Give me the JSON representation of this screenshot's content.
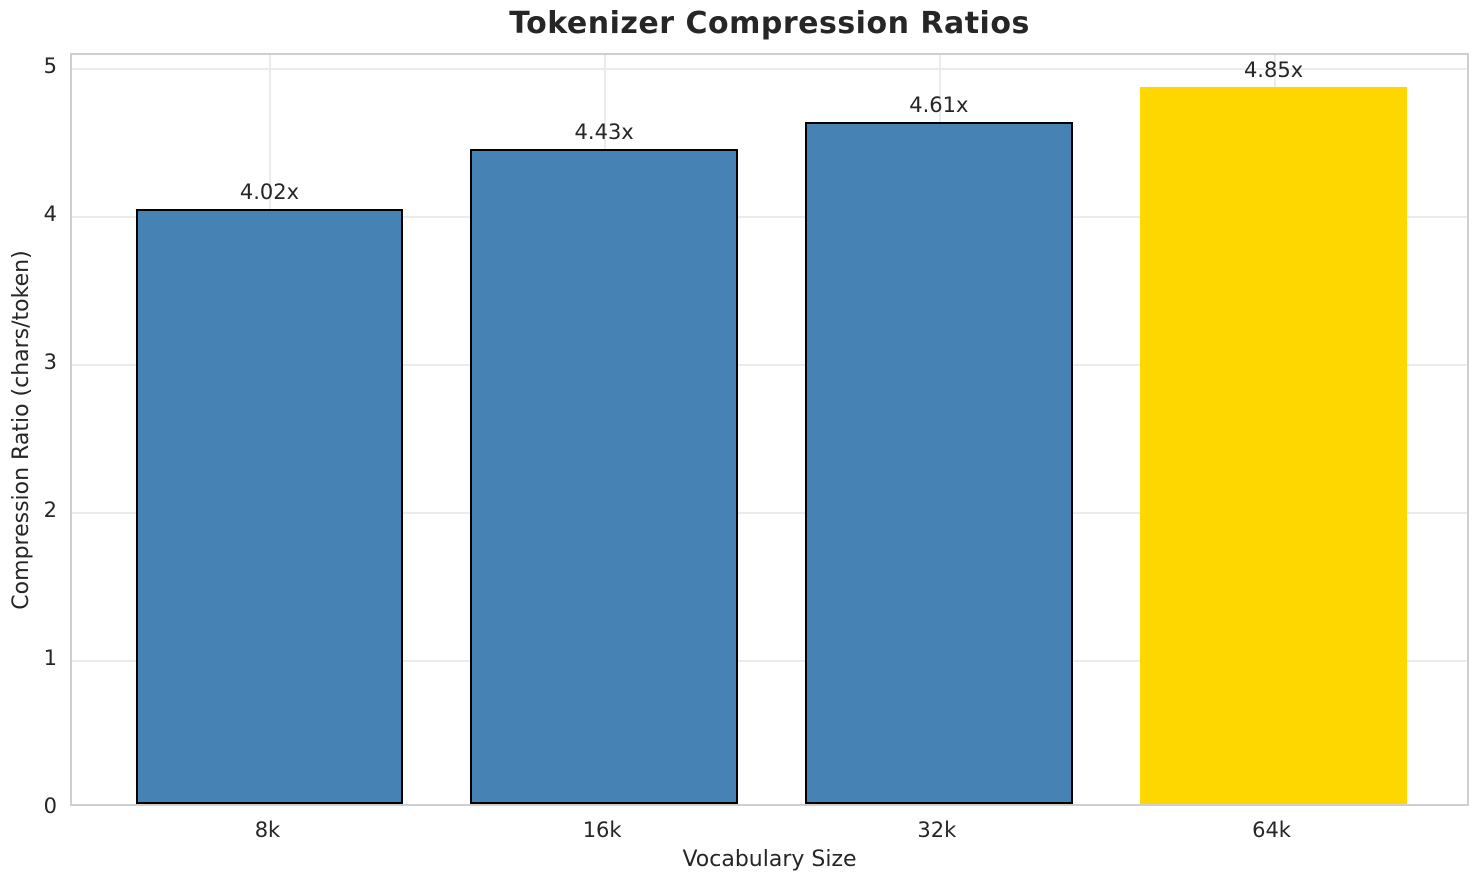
{
  "chart_data": {
    "type": "bar",
    "title": "Tokenizer Compression Ratios",
    "xlabel": "Vocabulary Size",
    "ylabel": "Compression Ratio (chars/token)",
    "categories": [
      "8k",
      "16k",
      "32k",
      "64k"
    ],
    "values": [
      4.02,
      4.43,
      4.61,
      4.85
    ],
    "value_labels": [
      "4.02x",
      "4.43x",
      "4.61x",
      "4.85x"
    ],
    "bar_colors": [
      "#4682B4",
      "#4682B4",
      "#4682B4",
      "#FFD700"
    ],
    "bar_edge_colors": [
      "#000000",
      "#000000",
      "#000000",
      "none"
    ],
    "highlight_index": 3,
    "yticks": [
      0,
      1,
      2,
      3,
      4,
      5
    ],
    "ytick_labels": [
      "0",
      "1",
      "2",
      "3",
      "4",
      "5"
    ],
    "ylim": [
      0,
      5.09
    ],
    "grid": true,
    "grid_color": "#ebebeb",
    "spine_color": "#cfcfcf",
    "background_color": "#ffffff",
    "text_color": "#262626"
  }
}
